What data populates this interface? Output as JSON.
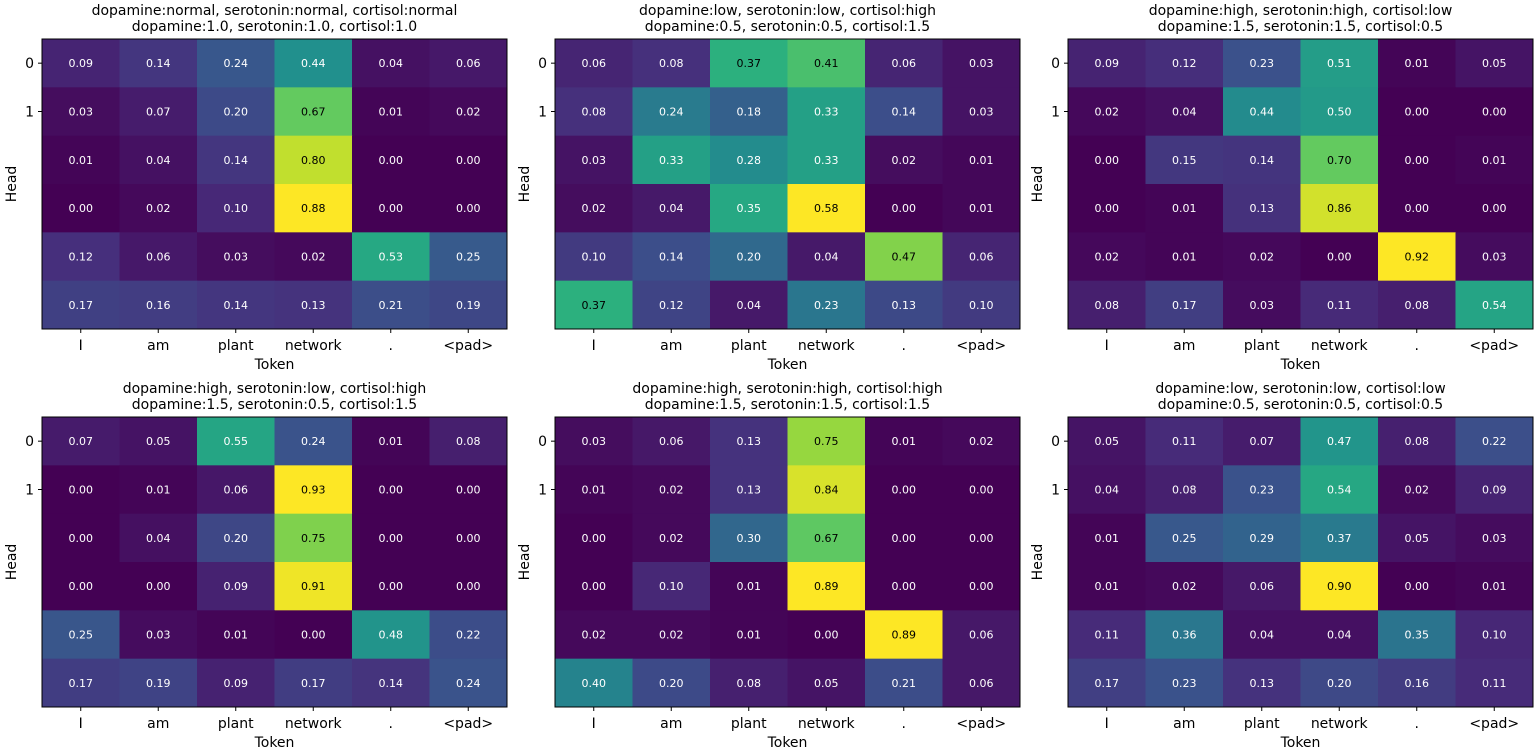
{
  "figure": {
    "background": "#ffffff",
    "colormap": "viridis",
    "xlabel": "Token",
    "ylabel": "Head"
  },
  "chart_data": [
    {
      "type": "heatmap",
      "title_line1": "dopamine:normal, serotonin:normal, cortisol:normal",
      "title_line2": "dopamine:1.0, serotonin:1.0, cortisol:1.0",
      "xlabel": "Token",
      "ylabel": "Head",
      "x_ticks": [
        "I",
        "am",
        "plant",
        "network",
        ".",
        "<pad>"
      ],
      "y_ticks": [
        "0",
        "1"
      ],
      "values": [
        [
          0.09,
          0.14,
          0.24,
          0.44,
          0.04,
          0.06
        ],
        [
          0.03,
          0.07,
          0.2,
          0.67,
          0.01,
          0.02
        ],
        [
          0.01,
          0.04,
          0.14,
          0.8,
          0.0,
          0.0
        ],
        [
          0.0,
          0.02,
          0.1,
          0.88,
          0.0,
          0.0
        ],
        [
          0.12,
          0.06,
          0.03,
          0.02,
          0.53,
          0.25
        ],
        [
          0.17,
          0.16,
          0.14,
          0.13,
          0.21,
          0.19
        ]
      ]
    },
    {
      "type": "heatmap",
      "title_line1": "dopamine:low, serotonin:low, cortisol:high",
      "title_line2": "dopamine:0.5, serotonin:0.5, cortisol:1.5",
      "xlabel": "Token",
      "ylabel": "Head",
      "x_ticks": [
        "I",
        "am",
        "plant",
        "network",
        ".",
        "<pad>"
      ],
      "y_ticks": [
        "0",
        "1"
      ],
      "values": [
        [
          0.06,
          0.08,
          0.37,
          0.41,
          0.06,
          0.03
        ],
        [
          0.08,
          0.24,
          0.18,
          0.33,
          0.14,
          0.03
        ],
        [
          0.03,
          0.33,
          0.28,
          0.33,
          0.02,
          0.01
        ],
        [
          0.02,
          0.04,
          0.35,
          0.58,
          0.0,
          0.01
        ],
        [
          0.1,
          0.14,
          0.2,
          0.04,
          0.47,
          0.06
        ],
        [
          0.37,
          0.12,
          0.04,
          0.23,
          0.13,
          0.1
        ]
      ]
    },
    {
      "type": "heatmap",
      "title_line1": "dopamine:high, serotonin:high, cortisol:low",
      "title_line2": "dopamine:1.5, serotonin:1.5, cortisol:0.5",
      "xlabel": "Token",
      "ylabel": "Head",
      "x_ticks": [
        "I",
        "am",
        "plant",
        "network",
        ".",
        "<pad>"
      ],
      "y_ticks": [
        "0",
        "1"
      ],
      "values": [
        [
          0.09,
          0.12,
          0.23,
          0.51,
          0.01,
          0.05
        ],
        [
          0.02,
          0.04,
          0.44,
          0.5,
          0.0,
          0.0
        ],
        [
          0.0,
          0.15,
          0.14,
          0.7,
          0.0,
          0.01
        ],
        [
          0.0,
          0.01,
          0.13,
          0.86,
          0.0,
          0.0
        ],
        [
          0.02,
          0.01,
          0.02,
          0.0,
          0.92,
          0.03
        ],
        [
          0.08,
          0.17,
          0.03,
          0.11,
          0.08,
          0.54
        ]
      ]
    },
    {
      "type": "heatmap",
      "title_line1": "dopamine:high, serotonin:low, cortisol:high",
      "title_line2": "dopamine:1.5, serotonin:0.5, cortisol:1.5",
      "xlabel": "Token",
      "ylabel": "Head",
      "x_ticks": [
        "I",
        "am",
        "plant",
        "network",
        ".",
        "<pad>"
      ],
      "y_ticks": [
        "0",
        "1"
      ],
      "values": [
        [
          0.07,
          0.05,
          0.55,
          0.24,
          0.01,
          0.08
        ],
        [
          0.0,
          0.01,
          0.06,
          0.93,
          0.0,
          0.0
        ],
        [
          0.0,
          0.04,
          0.2,
          0.75,
          0.0,
          0.0
        ],
        [
          0.0,
          0.0,
          0.09,
          0.91,
          0.0,
          0.0
        ],
        [
          0.25,
          0.03,
          0.01,
          0.0,
          0.48,
          0.22
        ],
        [
          0.17,
          0.19,
          0.09,
          0.17,
          0.14,
          0.24
        ]
      ]
    },
    {
      "type": "heatmap",
      "title_line1": "dopamine:high, serotonin:high, cortisol:high",
      "title_line2": "dopamine:1.5, serotonin:1.5, cortisol:1.5",
      "xlabel": "Token",
      "ylabel": "Head",
      "x_ticks": [
        "I",
        "am",
        "plant",
        "network",
        ".",
        "<pad>"
      ],
      "y_ticks": [
        "0",
        "1"
      ],
      "values": [
        [
          0.03,
          0.06,
          0.13,
          0.75,
          0.01,
          0.02
        ],
        [
          0.01,
          0.02,
          0.13,
          0.84,
          0.0,
          0.0
        ],
        [
          0.0,
          0.02,
          0.3,
          0.67,
          0.0,
          0.0
        ],
        [
          0.0,
          0.1,
          0.01,
          0.89,
          0.0,
          0.0
        ],
        [
          0.02,
          0.02,
          0.01,
          0.0,
          0.89,
          0.06
        ],
        [
          0.4,
          0.2,
          0.08,
          0.05,
          0.21,
          0.06
        ]
      ]
    },
    {
      "type": "heatmap",
      "title_line1": "dopamine:low, serotonin:low, cortisol:low",
      "title_line2": "dopamine:0.5, serotonin:0.5, cortisol:0.5",
      "xlabel": "Token",
      "ylabel": "Head",
      "x_ticks": [
        "I",
        "am",
        "plant",
        "network",
        ".",
        "<pad>"
      ],
      "y_ticks": [
        "0",
        "1"
      ],
      "values": [
        [
          0.05,
          0.11,
          0.07,
          0.47,
          0.08,
          0.22
        ],
        [
          0.04,
          0.08,
          0.23,
          0.54,
          0.02,
          0.09
        ],
        [
          0.01,
          0.25,
          0.29,
          0.37,
          0.05,
          0.03
        ],
        [
          0.01,
          0.02,
          0.06,
          0.9,
          0.0,
          0.01
        ],
        [
          0.11,
          0.36,
          0.04,
          0.04,
          0.35,
          0.1
        ],
        [
          0.17,
          0.23,
          0.13,
          0.2,
          0.16,
          0.11
        ]
      ]
    }
  ]
}
